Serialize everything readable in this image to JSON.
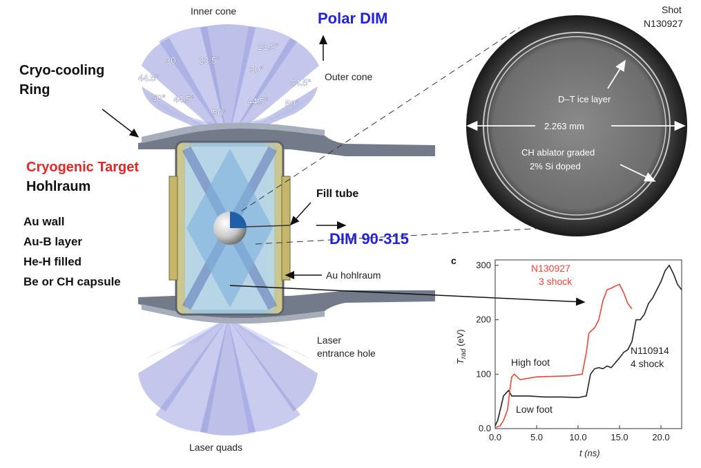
{
  "labels": {
    "inner_cone": "Inner cone",
    "polar_dim": "Polar DIM",
    "outer_cone": "Outer cone",
    "cryo_line1": "Cryo-cooling",
    "cryo_line2": "Ring",
    "cryogenic_target": "Cryogenic Target",
    "hohlraum": "Hohlraum",
    "fill_tube": "Fill tube",
    "dim_90_315": "DIM 90-315",
    "au_hohlraum": "Au hohlraum",
    "leh_line1": "Laser",
    "leh_line2": "entrance hole",
    "laser_quads": "Laser quads",
    "composition": [
      "Au wall",
      "Au-B layer",
      "He-H filled",
      "Be or CH capsule"
    ]
  },
  "angles": [
    "30°",
    "23.5°",
    "23.5°",
    "30°",
    "44.5°",
    "44.5°",
    "50°",
    "44.5°",
    "50°",
    "44.5°",
    "50°"
  ],
  "capsule_photo": {
    "shot_line1": "Shot",
    "shot_line2": "N130927",
    "ice_label": "D–T ice layer",
    "diameter": "2.263 mm",
    "ablator_line1": "CH ablator graded",
    "ablator_line2": "2% Si doped"
  },
  "chart_data": {
    "type": "line",
    "panel_label": "c",
    "ylabel_main": "T",
    "ylabel_sub": "rad",
    "ylabel_unit": "(eV)",
    "xlabel": "t (ns)",
    "xlim": [
      0,
      22.5
    ],
    "ylim": [
      0,
      310
    ],
    "xticks": [
      "0.0",
      "5.0",
      "10.0",
      "15.0",
      "20.0"
    ],
    "yticks": [
      "0.0",
      "100",
      "200",
      "300"
    ],
    "xtick_values": [
      0,
      5,
      10,
      15,
      20
    ],
    "ytick_values": [
      0,
      100,
      200,
      300
    ],
    "series": [
      {
        "name": "N110914 4 shock",
        "color": "#222222",
        "x": [
          0,
          0.3,
          0.7,
          1.0,
          1.3,
          1.6,
          2.0,
          4.0,
          6.0,
          8.0,
          10.0,
          11.0,
          11.5,
          12.0,
          12.5,
          13.0,
          13.5,
          14.0,
          15.0,
          15.5,
          16.0,
          16.5,
          17.0,
          17.5,
          18.0,
          18.5,
          19.0,
          19.5,
          20.0,
          20.5,
          21.0,
          21.5,
          22.0,
          22.5
        ],
        "y": [
          5,
          15,
          40,
          60,
          65,
          70,
          60,
          60,
          58,
          58,
          57,
          60,
          100,
          110,
          112,
          110,
          115,
          112,
          130,
          140,
          145,
          160,
          200,
          200,
          210,
          230,
          240,
          255,
          270,
          290,
          300,
          285,
          265,
          255
        ]
      },
      {
        "name": "N130927 3 shock",
        "color": "#e8463a",
        "x": [
          0,
          0.6,
          1.0,
          1.5,
          1.8,
          2.0,
          2.3,
          3.0,
          5.0,
          7.0,
          9.0,
          10.5,
          11.0,
          11.3,
          11.6,
          12.0,
          12.5,
          13.0,
          13.5,
          14.0,
          14.5,
          15.0,
          15.5,
          16.0,
          16.5
        ],
        "y": [
          2,
          5,
          15,
          35,
          75,
          95,
          100,
          90,
          95,
          96,
          97,
          100,
          140,
          175,
          180,
          185,
          200,
          235,
          255,
          258,
          262,
          265,
          250,
          230,
          220
        ]
      }
    ],
    "annotations": {
      "red_line1": "N130927",
      "red_line2": "3 shock",
      "black_line1": "N110914",
      "black_line2": "4 shock",
      "high_foot": "High foot",
      "low_foot": "Low foot"
    }
  }
}
